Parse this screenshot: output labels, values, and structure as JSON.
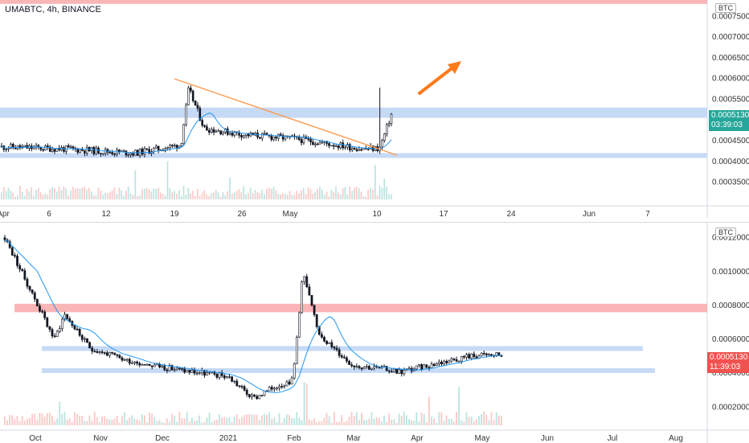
{
  "top": {
    "title": "UMABTC, 4h, BINANCE",
    "currency": "BTC",
    "price_badge": "0.0005130",
    "time_badge": "03:39:03",
    "y_ticks": [
      "0.0007500",
      "0.0007000",
      "0.0006500",
      "0.0006000",
      "0.0005500",
      "0.0004500",
      "0.0004000",
      "0.0003500"
    ],
    "x_ticks": [
      "Apr",
      "6",
      "12",
      "19",
      "26",
      "May",
      "10",
      "17",
      "24",
      "Jun",
      "7"
    ]
  },
  "bottom": {
    "currency": "BTC",
    "price_badge": "0.0005130",
    "time_badge": "11:39:03",
    "y_ticks": [
      "0.0012000",
      "0.0010000",
      "0.0008000",
      "0.0006000",
      "0.0004000",
      "0.0002000"
    ],
    "x_ticks": [
      "Oct",
      "Nov",
      "Dec",
      "2021",
      "Feb",
      "Mar",
      "Apr",
      "May",
      "Jun",
      "Jul",
      "Aug"
    ]
  },
  "colors": {
    "up": "#ffffff",
    "down": "#131722",
    "ma": "#2196f3",
    "support_zone": "#bcd3f5",
    "resistance_zone": "#f9a9a9",
    "trendline": "#ff9a4d",
    "arrow": "#ff7a1a",
    "badge_top": "#26a69a",
    "badge_bottom": "#ef5350"
  },
  "chart_data": [
    {
      "type": "candlestick",
      "title": "UMABTC, 4h, BINANCE",
      "x": [
        "Apr 1",
        "Apr 6",
        "Apr 12",
        "Apr 19",
        "Apr 26",
        "May 3",
        "May 10",
        "May 11"
      ],
      "close": [
        0.000437,
        0.00043,
        0.00044,
        0.000565,
        0.00047,
        0.000455,
        0.00043,
        0.000513
      ],
      "ylim": [
        0.00033,
        0.0008
      ],
      "zones": [
        [
          0.000505,
          0.000545
        ],
        [
          0.000415,
          0.000425
        ],
        [
          0.000785,
          0.0008
        ]
      ]
    },
    {
      "type": "candlestick",
      "x": [
        "Oct",
        "Nov",
        "Dec",
        "2021",
        "Feb",
        "Mar",
        "Apr",
        "May"
      ],
      "close": [
        0.00082,
        0.00049,
        0.00041,
        0.00027,
        0.00091,
        0.00044,
        0.00043,
        0.000513
      ],
      "ylim": [
        0.00014,
        0.00126
      ],
      "zones": [
        [
          0.00076,
          0.00081
        ],
        [
          0.00054,
          0.00057
        ],
        [
          0.00042,
          0.00043
        ]
      ]
    }
  ]
}
